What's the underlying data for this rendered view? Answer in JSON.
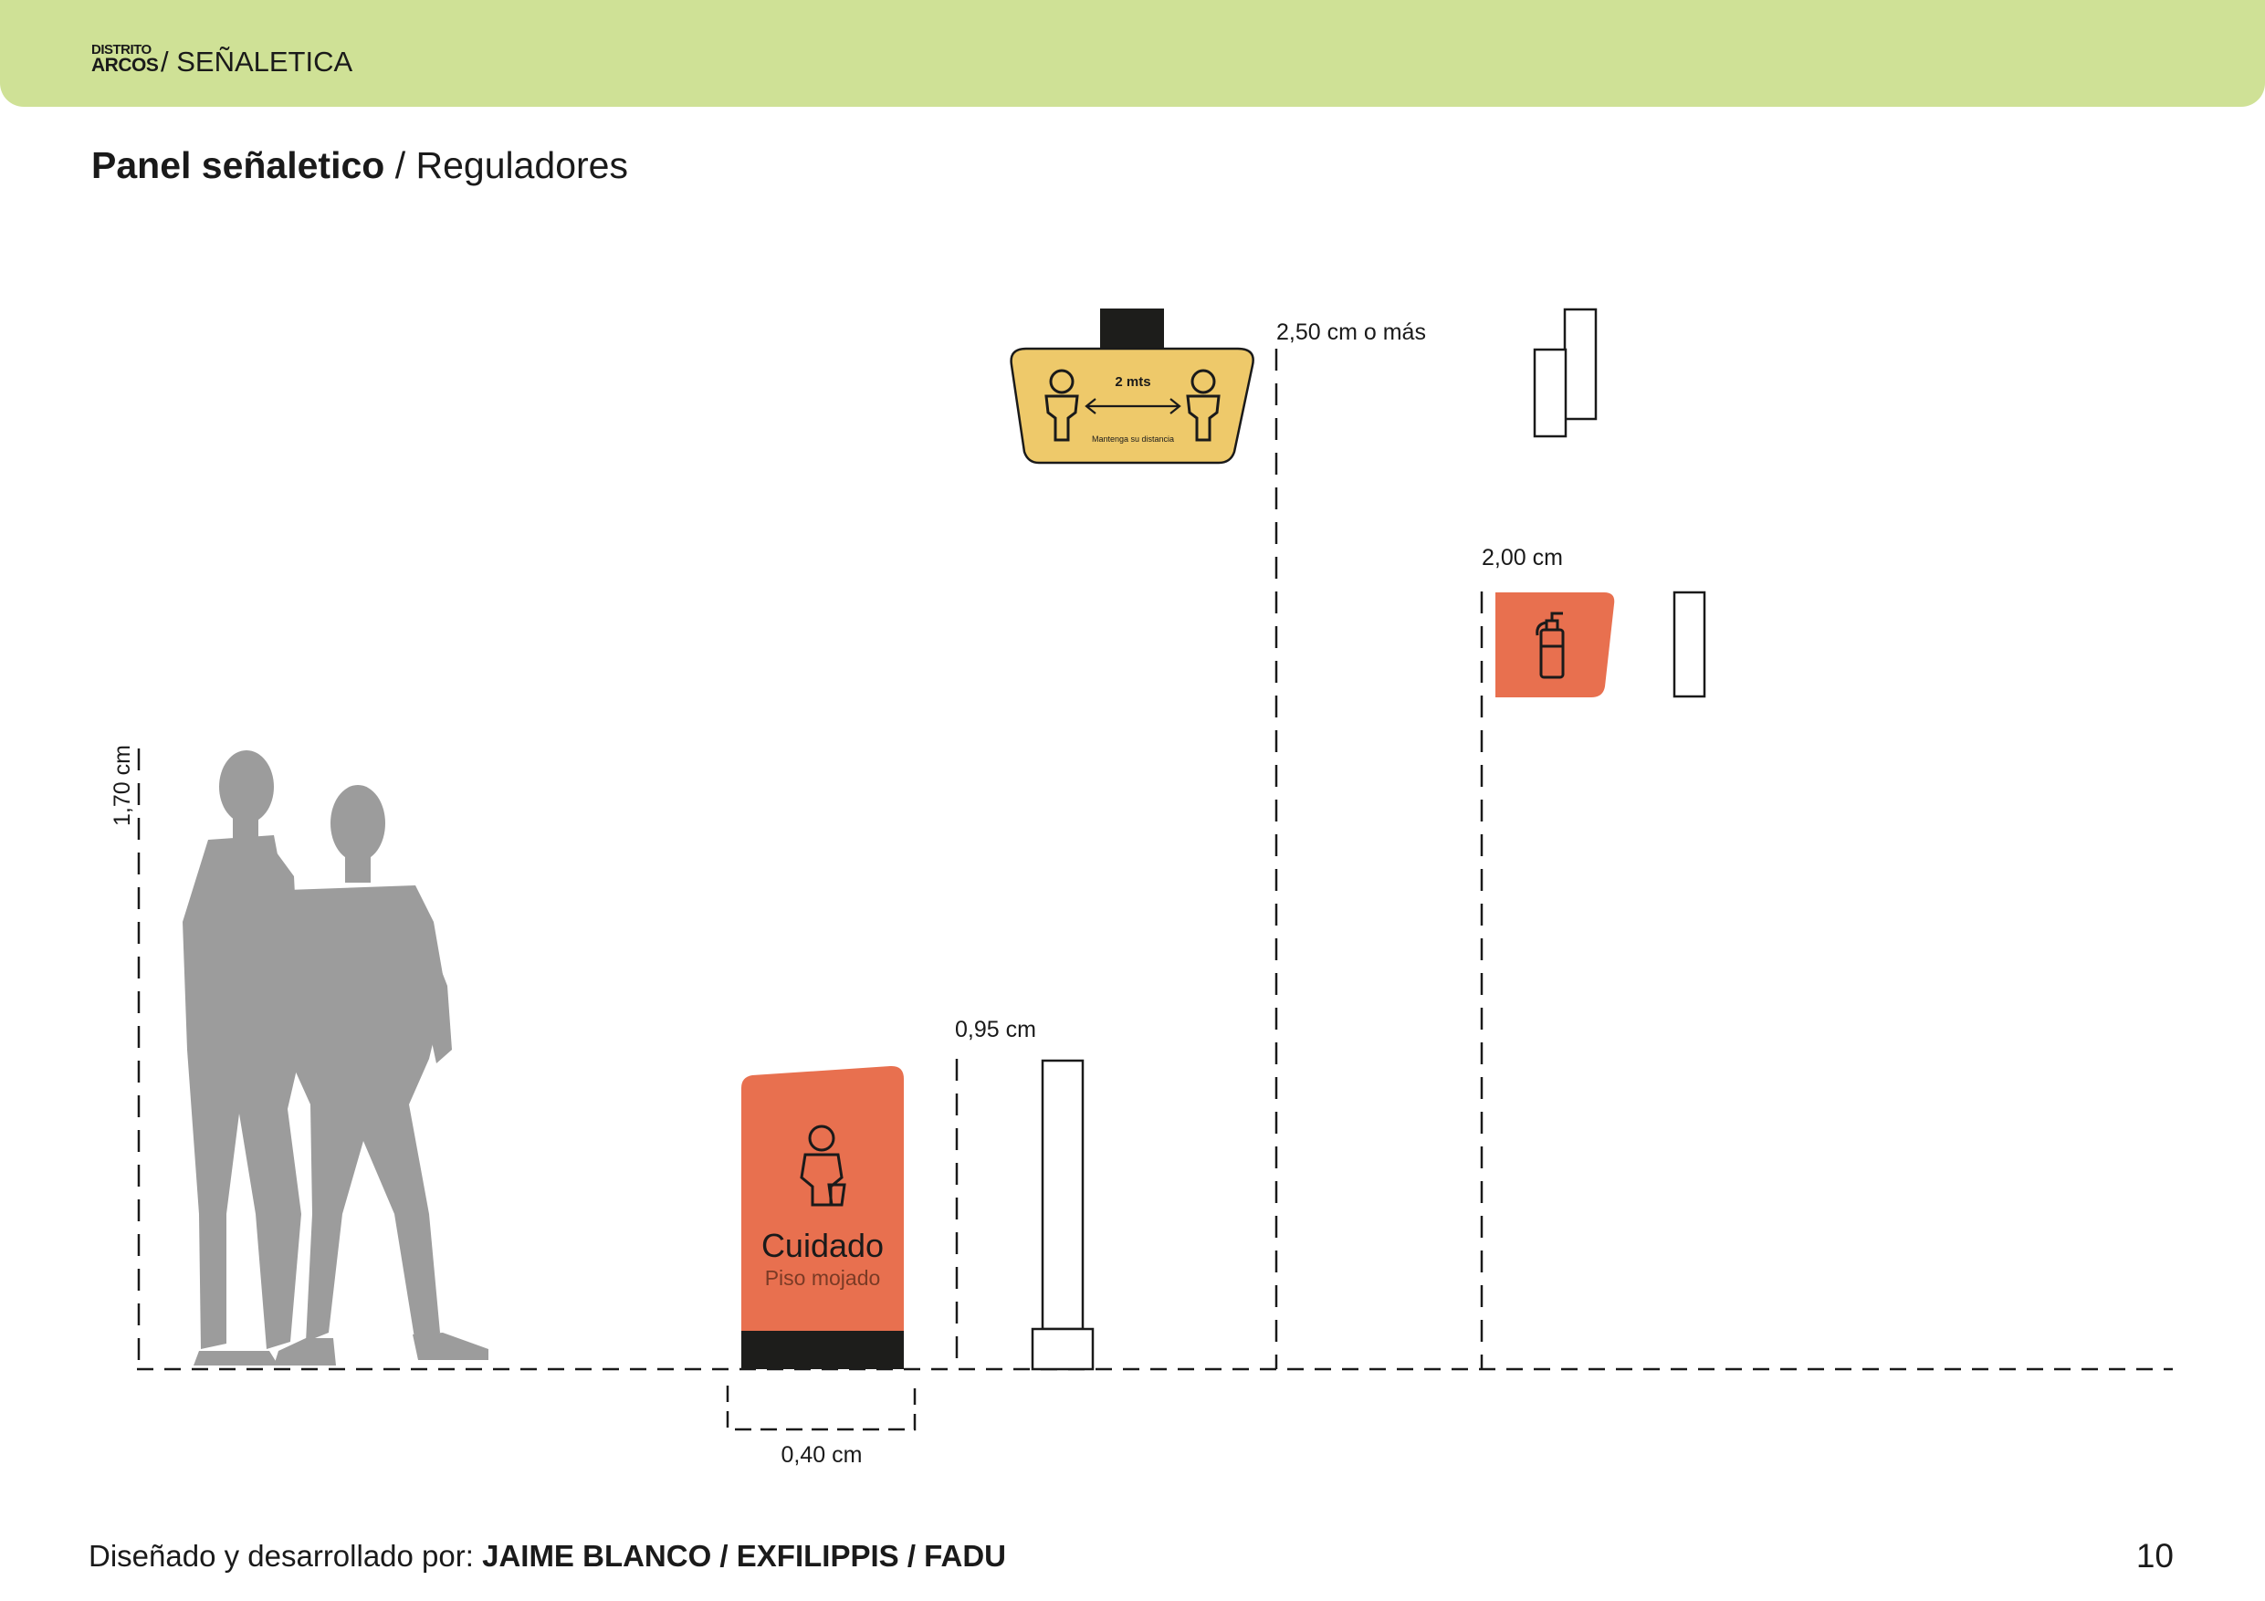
{
  "header": {
    "brand_line1": "DISTRITO",
    "brand_line2": "ARCOS",
    "section": "/ SEÑALETICA"
  },
  "title": {
    "strong": "Panel señaletico",
    "light": " / Reguladores"
  },
  "dimensions": {
    "person_height": "1,70 cm",
    "floor_sign_width": "0,40 cm",
    "post_height": "0,95 cm",
    "hanging_height": "2,50 cm o más",
    "wall_height": "2,00 cm"
  },
  "hanging_sign": {
    "distance": "2 mts",
    "caption": "Mantenga su distancia"
  },
  "floor_sign": {
    "title": "Cuidado",
    "subtitle": "Piso mojado"
  },
  "icons": {
    "person_silhouettes": "people-silhouette-icon",
    "person_left": "person-icon",
    "person_right": "person-icon",
    "arrow": "double-arrow-icon",
    "janitor": "janitor-bucket-icon",
    "extinguisher": "fire-extinguisher-icon"
  },
  "colors": {
    "header": "#cfe196",
    "orange": "#e8704f",
    "yellow": "#eec96a",
    "silhouette": "#9c9c9c",
    "base": "#1d1d1b"
  },
  "footer": {
    "prefix": "Diseñado y desarrollado por: ",
    "names": "JAIME BLANCO / EXFILIPPIS / FADU",
    "page": "10"
  }
}
